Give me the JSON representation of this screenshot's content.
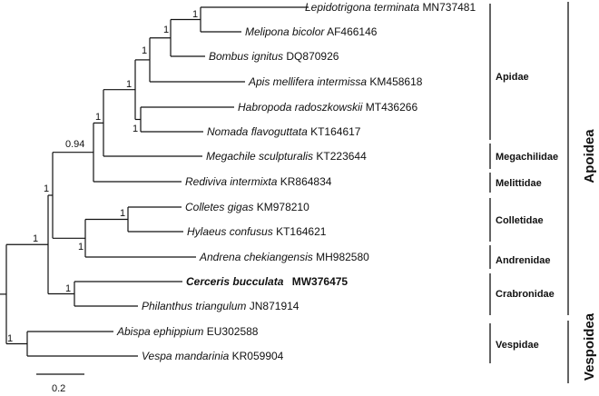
{
  "taxa": [
    {
      "genus_species": "Lepidotrigona terminata",
      "accession": "MN737481",
      "bold": false
    },
    {
      "genus_species": "Melipona bicolor",
      "accession": "AF466146",
      "bold": false
    },
    {
      "genus_species": "Bombus ignitus",
      "accession": "DQ870926",
      "bold": false
    },
    {
      "genus_species": "Apis mellifera intermissa",
      "accession": "KM458618",
      "bold": false
    },
    {
      "genus_species": "Habropoda radoszkowskii",
      "accession": "MT436266",
      "bold": false
    },
    {
      "genus_species": "Nomada flavoguttata",
      "accession": "KT164617",
      "bold": false
    },
    {
      "genus_species": "Megachile sculpturalis",
      "accession": "KT223644",
      "bold": false
    },
    {
      "genus_species": "Rediviva intermixta",
      "accession": "KR864834",
      "bold": false
    },
    {
      "genus_species": "Colletes gigas",
      "accession": "KM978210",
      "bold": false
    },
    {
      "genus_species": "Hylaeus confusus",
      "accession": "KT164621",
      "bold": false
    },
    {
      "genus_species": "Andrena chekiangensis",
      "accession": "MH982580",
      "bold": false
    },
    {
      "genus_species": "Cerceris bucculata",
      "accession": "MW376475",
      "bold": true
    },
    {
      "genus_species": "Philanthus triangulum",
      "accession": "JN871914",
      "bold": false
    },
    {
      "genus_species": "Abispa ephippium",
      "accession": "EU302588",
      "bold": false
    },
    {
      "genus_species": "Vespa mandarinia",
      "accession": "KR059904",
      "bold": false
    }
  ],
  "support_values": {
    "lep_mel": "1",
    "lep_bom": "1",
    "lep_apis": "1",
    "hab_nom": "1",
    "apidae": "1",
    "apidae_meg": "0.94",
    "ap_meg_red": "1",
    "coll_hyl": "1",
    "coll_and": "1",
    "apoidea_bees": "1",
    "crabronidae": "1",
    "vespidae": "1"
  },
  "families": {
    "apidae": "Apidae",
    "megachilidae": "Megachilidae",
    "melittidae": "Melittidae",
    "colletidae": "Colletidae",
    "andrenidae": "Andrenidae",
    "crabronidae": "Crabronidae",
    "vespidae": "Vespidae"
  },
  "superfamilies": {
    "apoidea": "Apoidea",
    "vespoidea": "Vespoidea"
  },
  "scale_bar": {
    "label": "0.2"
  }
}
